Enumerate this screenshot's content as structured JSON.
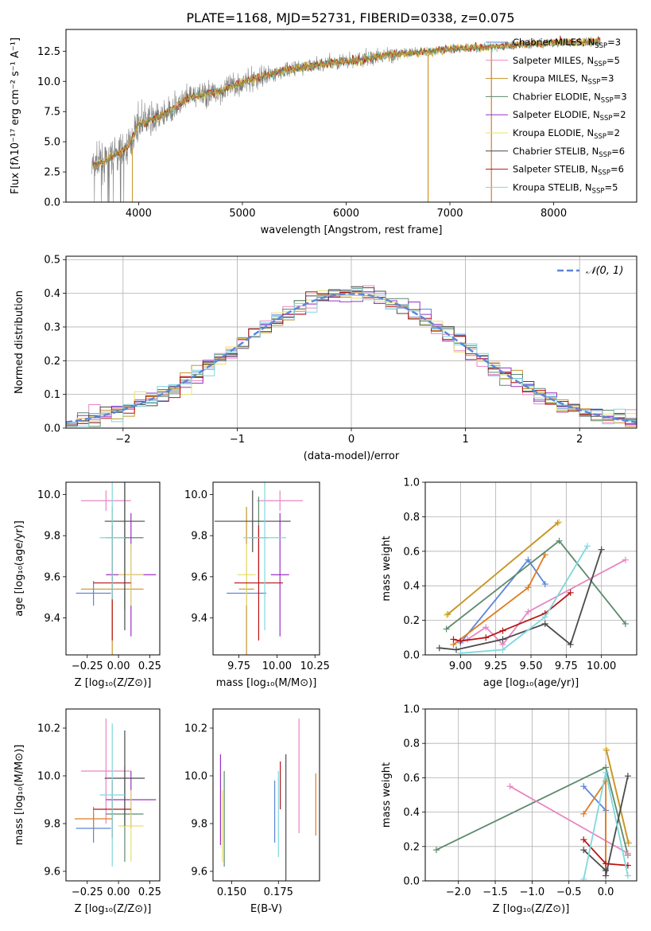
{
  "figure_title": "PLATE=1168, MJD=52731, FIBERID=0338, z=0.075",
  "colors": {
    "chabrier_miles": "#5b86d8",
    "salpeter_miles": "#e787c1",
    "kroupa_miles": "#c8932a",
    "chabrier_elodie": "#5d8a6c",
    "salpeter_elodie": "#9b30c6",
    "kroupa_elodie": "#e8e06e",
    "chabrier_stelib": "#4a4a4a",
    "salpeter_stelib": "#b81414",
    "kroupa_stelib": "#7fd8de",
    "orange": "#e07b20",
    "observed": "#808080"
  },
  "chart_data": [
    {
      "id": "spectrum",
      "type": "line",
      "xlabel": "wavelength [Angstrom, rest frame]",
      "ylabel": "Flux [fλ10⁻¹⁷ erg cm⁻² s⁻¹ A⁻¹]",
      "xlim": [
        3300,
        8800
      ],
      "ylim": [
        0,
        14.3
      ],
      "xticks": [
        4000,
        5000,
        6000,
        7000,
        8000
      ],
      "yticks": [
        0.0,
        2.5,
        5.0,
        7.5,
        10.0,
        12.5
      ],
      "grid": false,
      "legend_position": "right",
      "observed_trend": {
        "x": [
          3550,
          3700,
          3900,
          4000,
          4200,
          4500,
          4800,
          5000,
          5300,
          5600,
          5900,
          6100,
          6400,
          6700,
          7000,
          7300,
          7600,
          8000,
          8400
        ],
        "y": [
          3.0,
          3.5,
          4.6,
          6.5,
          7.0,
          8.7,
          9.2,
          9.9,
          10.7,
          11.2,
          11.6,
          11.7,
          12.2,
          12.4,
          12.7,
          12.8,
          13.0,
          13.2,
          13.3
        ]
      },
      "legend": [
        {
          "label": "Chabrier MILES, N",
          "sub": "SSP",
          "value": "=3",
          "color_key": "chabrier_miles"
        },
        {
          "label": "Salpeter MILES, N",
          "sub": "SSP",
          "value": "=5",
          "color_key": "salpeter_miles"
        },
        {
          "label": "Kroupa MILES, N",
          "sub": "SSP",
          "value": "=3",
          "color_key": "kroupa_miles"
        },
        {
          "label": "Chabrier ELODIE, N",
          "sub": "SSP",
          "value": "=3",
          "color_key": "chabrier_elodie"
        },
        {
          "label": "Salpeter ELODIE, N",
          "sub": "SSP",
          "value": "=2",
          "color_key": "salpeter_elodie"
        },
        {
          "label": "Kroupa ELODIE, N",
          "sub": "SSP",
          "value": "=2",
          "color_key": "kroupa_elodie"
        },
        {
          "label": "Chabrier STELIB, N",
          "sub": "SSP",
          "value": "=6",
          "color_key": "chabrier_stelib"
        },
        {
          "label": "Salpeter STELIB, N",
          "sub": "SSP",
          "value": "=6",
          "color_key": "salpeter_stelib"
        },
        {
          "label": "Kroupa STELIB, N",
          "sub": "SSP",
          "value": "=5",
          "color_key": "kroupa_stelib"
        }
      ]
    },
    {
      "id": "residuals",
      "type": "line",
      "xlabel": "(data-model)/error",
      "ylabel": "Normed distribution",
      "xlim": [
        -2.5,
        2.5
      ],
      "ylim": [
        0,
        0.51
      ],
      "xticks": [
        -2,
        -1,
        0,
        1,
        2
      ],
      "yticks": [
        0.0,
        0.1,
        0.2,
        0.3,
        0.4,
        0.5
      ],
      "grid": true,
      "legend_position": "top-right",
      "legend": [
        {
          "label": "𝒩(0, 1)",
          "color_key": "chabrier_miles"
        }
      ],
      "bin_width": 0.1,
      "bin_start": -2.5
    },
    {
      "id": "age_vs_Z",
      "type": "scatter",
      "xlabel": "Z [log₁₀(Z/Z⊙)]",
      "ylabel": "age  [log₁₀(age/yr)]",
      "xlim": [
        -0.42,
        0.33
      ],
      "ylim": [
        9.22,
        10.06
      ],
      "xticks": [
        -0.25,
        0.0,
        0.25
      ],
      "xticklabels": [
        "−0.25",
        "0.00",
        "0.25"
      ],
      "yticks": [
        9.4,
        9.6,
        9.8,
        10.0
      ],
      "grid": false,
      "points": [
        {
          "x": -0.2,
          "xerr": 0.14,
          "y": 9.52,
          "yerr": 0.06,
          "color_key": "chabrier_miles"
        },
        {
          "x": -0.1,
          "xerr": 0.2,
          "y": 9.97,
          "yerr": 0.05,
          "color_key": "salpeter_miles"
        },
        {
          "x": -0.05,
          "xerr": 0.25,
          "y": 9.54,
          "yerr": 0.4,
          "color_key": "kroupa_miles"
        },
        {
          "x": 0.05,
          "xerr": 0.15,
          "y": 9.79,
          "yerr": 0.35,
          "color_key": "chabrier_elodie"
        },
        {
          "x": 0.1,
          "xerr": 0.2,
          "y": 9.61,
          "yerr": 0.3,
          "color_key": "salpeter_elodie"
        },
        {
          "x": 0.1,
          "xerr": 0.1,
          "y": 9.61,
          "yerr": 0.15,
          "color_key": "kroupa_elodie"
        },
        {
          "x": 0.05,
          "xerr": 0.16,
          "y": 9.87,
          "yerr": 0.53,
          "color_key": "chabrier_stelib"
        },
        {
          "x": -0.05,
          "xerr": 0.15,
          "y": 9.57,
          "yerr": 0.28,
          "color_key": "salpeter_stelib"
        },
        {
          "x": -0.05,
          "xerr": 0.1,
          "y": 9.79,
          "yerr": 0.3,
          "color_key": "kroupa_stelib"
        }
      ]
    },
    {
      "id": "age_vs_mass",
      "type": "scatter",
      "xlabel": "mass [log₁₀(M/M⊙)]",
      "ylabel": "",
      "xlim": [
        9.58,
        10.28
      ],
      "ylim": [
        9.22,
        10.06
      ],
      "xticks": [
        9.75,
        10.0,
        10.25
      ],
      "xticklabels": [
        "9.75",
        "10.00",
        "10.25"
      ],
      "yticks": [
        9.4,
        9.6,
        9.8,
        10.0
      ],
      "grid": false,
      "points": [
        {
          "x": 9.8,
          "xerr": 0.13,
          "y": 9.52,
          "yerr": 0.06,
          "color_key": "chabrier_miles"
        },
        {
          "x": 10.02,
          "xerr": 0.15,
          "y": 9.97,
          "yerr": 0.05,
          "color_key": "salpeter_miles"
        },
        {
          "x": 9.8,
          "xerr": 0.05,
          "y": 9.54,
          "yerr": 0.4,
          "color_key": "kroupa_miles"
        },
        {
          "x": 9.88,
          "xerr": 0.06,
          "y": 9.79,
          "yerr": 0.2,
          "color_key": "chabrier_elodie"
        },
        {
          "x": 10.02,
          "xerr": 0.06,
          "y": 9.61,
          "yerr": 0.3,
          "color_key": "salpeter_elodie"
        },
        {
          "x": 9.8,
          "xerr": 0.06,
          "y": 9.61,
          "yerr": 0.15,
          "color_key": "kroupa_elodie"
        },
        {
          "x": 9.84,
          "xerr": 0.25,
          "y": 9.87,
          "yerr": 0.15,
          "color_key": "chabrier_stelib"
        },
        {
          "x": 9.88,
          "xerr": 0.16,
          "y": 9.57,
          "yerr": 0.28,
          "color_key": "salpeter_stelib"
        },
        {
          "x": 9.92,
          "xerr": 0.14,
          "y": 9.79,
          "yerr": 0.45,
          "color_key": "kroupa_stelib"
        }
      ]
    },
    {
      "id": "weight_vs_age",
      "type": "line",
      "xlabel": "age  [log₁₀(age/yr)]",
      "ylabel": "mass weight",
      "xlim": [
        8.75,
        10.25
      ],
      "ylim": [
        0,
        1.0
      ],
      "xticks": [
        9.0,
        9.25,
        9.5,
        9.75,
        10.0
      ],
      "xticklabels": [
        "9.00",
        "9.25",
        "9.50",
        "9.75",
        "10.00"
      ],
      "yticks": [
        0.0,
        0.2,
        0.4,
        0.6,
        0.8,
        1.0
      ],
      "grid": true,
      "series": [
        {
          "color_key": "chabrier_miles",
          "x": [
            9.0,
            9.48,
            9.6
          ],
          "y": [
            0.07,
            0.55,
            0.41
          ]
        },
        {
          "color_key": "orange",
          "x": [
            8.95,
            9.48,
            9.6
          ],
          "y": [
            0.06,
            0.39,
            0.58
          ]
        },
        {
          "color_key": "kroupa_elodie",
          "x": [
            8.9,
            9.7
          ],
          "y": [
            0.23,
            0.77
          ]
        },
        {
          "color_key": "kroupa_miles",
          "x": [
            8.91,
            9.69
          ],
          "y": [
            0.235,
            0.765
          ]
        },
        {
          "color_key": "chabrier_elodie",
          "x": [
            8.9,
            9.7,
            10.17
          ],
          "y": [
            0.15,
            0.66,
            0.18
          ]
        },
        {
          "color_key": "salpeter_miles",
          "x": [
            9.05,
            9.18,
            9.3,
            9.48,
            10.17
          ],
          "y": [
            0.09,
            0.16,
            0.06,
            0.25,
            0.55
          ]
        },
        {
          "color_key": "chabrier_stelib",
          "x": [
            8.85,
            8.97,
            9.3,
            9.6,
            9.78,
            10.0
          ],
          "y": [
            0.04,
            0.03,
            0.09,
            0.18,
            0.06,
            0.61
          ]
        },
        {
          "color_key": "salpeter_stelib",
          "x": [
            8.95,
            9.0,
            9.18,
            9.3,
            9.6,
            9.78
          ],
          "y": [
            0.09,
            0.08,
            0.1,
            0.14,
            0.24,
            0.36
          ]
        },
        {
          "color_key": "kroupa_stelib",
          "x": [
            9.0,
            9.3,
            9.6,
            9.9
          ],
          "y": [
            0.01,
            0.03,
            0.22,
            0.63
          ]
        }
      ]
    },
    {
      "id": "mass_vs_Z",
      "type": "scatter",
      "xlabel": "Z [log₁₀(Z/Z⊙)]",
      "ylabel": "mass [log₁₀(M/M⊙)]",
      "xlim": [
        -0.42,
        0.33
      ],
      "ylim": [
        9.56,
        10.28
      ],
      "xticks": [
        -0.25,
        0.0,
        0.25
      ],
      "xticklabels": [
        "−0.25",
        "0.00",
        "0.25"
      ],
      "yticks": [
        9.6,
        9.8,
        10.0,
        10.2
      ],
      "grid": false,
      "points": [
        {
          "x": -0.2,
          "xerr": 0.14,
          "y": 9.78,
          "yerr": 0.06,
          "color_key": "chabrier_miles"
        },
        {
          "x": -0.1,
          "xerr": 0.2,
          "y": 10.02,
          "yerr": 0.22,
          "color_key": "salpeter_miles"
        },
        {
          "x": -0.2,
          "xerr": 0.15,
          "y": 9.82,
          "yerr": 0.05,
          "color_key": "orange"
        },
        {
          "x": 0.05,
          "xerr": 0.15,
          "y": 9.84,
          "yerr": 0.2,
          "color_key": "chabrier_elodie"
        },
        {
          "x": 0.1,
          "xerr": 0.2,
          "y": 9.9,
          "yerr": 0.12,
          "color_key": "salpeter_elodie"
        },
        {
          "x": 0.1,
          "xerr": 0.1,
          "y": 9.79,
          "yerr": 0.15,
          "color_key": "kroupa_elodie"
        },
        {
          "x": 0.05,
          "xerr": 0.16,
          "y": 9.99,
          "yerr": 0.2,
          "color_key": "chabrier_stelib"
        },
        {
          "x": -0.05,
          "xerr": 0.15,
          "y": 9.86,
          "yerr": 0.12,
          "color_key": "salpeter_stelib"
        },
        {
          "x": -0.05,
          "xerr": 0.1,
          "y": 9.92,
          "yerr": 0.3,
          "color_key": "kroupa_stelib"
        }
      ]
    },
    {
      "id": "mass_vs_ebv",
      "type": "scatter",
      "xlabel": "E(B-V)",
      "ylabel": "",
      "xlim": [
        0.14,
        0.197
      ],
      "ylim": [
        9.56,
        10.28
      ],
      "xticks": [
        0.15,
        0.175
      ],
      "xticklabels": [
        "0.150",
        "0.175"
      ],
      "yticks": [
        9.6,
        9.8,
        10.0,
        10.2
      ],
      "grid": false,
      "points": [
        {
          "x": 0.173,
          "y": 9.85,
          "yerr": 0.13,
          "color_key": "chabrier_miles"
        },
        {
          "x": 0.186,
          "y": 10.0,
          "yerr": 0.24,
          "color_key": "salpeter_miles"
        },
        {
          "x": 0.195,
          "y": 9.88,
          "yerr": 0.13,
          "color_key": "orange"
        },
        {
          "x": 0.146,
          "y": 9.82,
          "yerr": 0.2,
          "color_key": "chabrier_elodie"
        },
        {
          "x": 0.144,
          "y": 9.9,
          "yerr": 0.19,
          "color_key": "salpeter_elodie"
        },
        {
          "x": 0.145,
          "y": 9.79,
          "yerr": 0.15,
          "color_key": "kroupa_elodie"
        },
        {
          "x": 0.179,
          "y": 9.82,
          "yerr": 0.27,
          "color_key": "chabrier_stelib"
        },
        {
          "x": 0.176,
          "y": 9.96,
          "yerr": 0.1,
          "color_key": "salpeter_stelib"
        },
        {
          "x": 0.175,
          "y": 9.84,
          "yerr": 0.18,
          "color_key": "kroupa_stelib"
        }
      ]
    },
    {
      "id": "weight_vs_Z",
      "type": "line",
      "xlabel": "Z [log₁₀(Z/Z⊙)]",
      "ylabel": "mass weight",
      "xlim": [
        -2.45,
        0.42
      ],
      "ylim": [
        0,
        1.0
      ],
      "xticks": [
        -2.0,
        -1.5,
        -1.0,
        -0.5,
        0.0
      ],
      "xticklabels": [
        "−2.0",
        "−1.5",
        "−1.0",
        "−0.5",
        "0.0"
      ],
      "yticks": [
        0.0,
        0.2,
        0.4,
        0.6,
        0.8,
        1.0
      ],
      "grid": true,
      "series": [
        {
          "color_key": "chabrier_elodie",
          "x": [
            -2.3,
            0.0,
            0.3
          ],
          "y": [
            0.18,
            0.66,
            0.15
          ]
        },
        {
          "color_key": "salpeter_miles",
          "x": [
            -1.3,
            0.3
          ],
          "y": [
            0.55,
            0.16
          ]
        },
        {
          "color_key": "kroupa_elodie",
          "x": [
            0.0,
            0.3
          ],
          "y": [
            0.77,
            0.23
          ]
        },
        {
          "color_key": "kroupa_miles",
          "x": [
            0.01,
            0.31
          ],
          "y": [
            0.76,
            0.22
          ]
        },
        {
          "color_key": "chabrier_miles",
          "x": [
            -0.3,
            0.0,
            0.0
          ],
          "y": [
            0.55,
            0.41,
            0.07
          ]
        },
        {
          "color_key": "orange",
          "x": [
            -0.3,
            0.0,
            0.0
          ],
          "y": [
            0.39,
            0.58,
            0.06
          ]
        },
        {
          "color_key": "chabrier_stelib",
          "x": [
            -0.3,
            0.0,
            0.0,
            0.3
          ],
          "y": [
            0.18,
            0.06,
            0.03,
            0.61
          ]
        },
        {
          "color_key": "salpeter_stelib",
          "x": [
            -0.3,
            0.0,
            0.3
          ],
          "y": [
            0.24,
            0.1,
            0.09
          ]
        },
        {
          "color_key": "kroupa_stelib",
          "x": [
            -0.3,
            0.0,
            0.3
          ],
          "y": [
            0.01,
            0.63,
            0.03
          ]
        }
      ]
    }
  ]
}
